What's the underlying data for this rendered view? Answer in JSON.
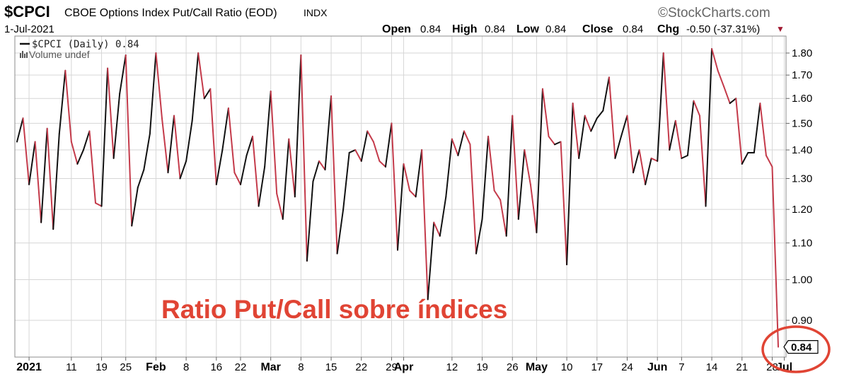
{
  "header": {
    "symbol": "$CPCI",
    "name": "CBOE Options Index Put/Call Ratio (EOD)",
    "exchange": "INDX",
    "date": "1-Jul-2021",
    "brand": "©StockCharts.com",
    "open_label": "Open",
    "open_value": "0.84",
    "high_label": "High",
    "high_value": "0.84",
    "low_label": "Low",
    "low_value": "0.84",
    "close_label": "Close",
    "close_value": "0.84",
    "chg_label": "Chg",
    "chg_value": "-0.50 (-37.31%)",
    "chg_arrow": "▼"
  },
  "legend": {
    "series_text": "$CPCI (Daily) 0.84",
    "volume_text": "Volume undef"
  },
  "annotation": "Ratio Put/Call sobre índices",
  "last_value_tag": "0.84",
  "colors": {
    "up_segment": "#111111",
    "down_segment": "#c43a4a",
    "grid": "#d6d6d6",
    "frame": "#888888",
    "annotation": "#e04434",
    "highlight_circle": "#e04434"
  },
  "chart_data": {
    "type": "line",
    "title": "CBOE Options Index Put/Call Ratio (EOD)",
    "xlabel": "",
    "ylabel": "",
    "ylim": [
      0.8,
      1.85
    ],
    "y_ticks": [
      "0.90",
      "1.00",
      "1.10",
      "1.20",
      "1.30",
      "1.40",
      "1.50",
      "1.60",
      "1.70",
      "1.80"
    ],
    "y_scale": "log",
    "grid": true,
    "legend_position": "top-left",
    "x_ticks": [
      "2021",
      "11",
      "19",
      "25",
      "Feb",
      "8",
      "16",
      "22",
      "Mar",
      "8",
      "15",
      "22",
      "29",
      "Apr",
      "12",
      "19",
      "26",
      "May",
      "10",
      "17",
      "24",
      "Jun",
      "7",
      "14",
      "21",
      "28",
      "Jul"
    ],
    "x_ticks_bold": [
      "2021",
      "Feb",
      "Mar",
      "Apr",
      "May",
      "Jun",
      "Jul"
    ],
    "x_tick_index": [
      2,
      9,
      14,
      18,
      23,
      28,
      33,
      37,
      42,
      47,
      52,
      57,
      62,
      64,
      72,
      77,
      82,
      86,
      91,
      96,
      101,
      106,
      110,
      115,
      120,
      125,
      127
    ],
    "series": [
      {
        "name": "$CPCI (Daily)",
        "values": [
          1.43,
          1.52,
          1.28,
          1.43,
          1.16,
          1.48,
          1.14,
          1.46,
          1.72,
          1.43,
          1.35,
          1.4,
          1.47,
          1.22,
          1.21,
          1.73,
          1.37,
          1.62,
          1.79,
          1.15,
          1.27,
          1.33,
          1.46,
          1.8,
          1.52,
          1.32,
          1.53,
          1.3,
          1.36,
          1.51,
          1.8,
          1.6,
          1.64,
          1.28,
          1.4,
          1.56,
          1.32,
          1.28,
          1.38,
          1.45,
          1.21,
          1.34,
          1.63,
          1.25,
          1.17,
          1.44,
          1.24,
          1.79,
          1.05,
          1.29,
          1.36,
          1.33,
          1.61,
          1.07,
          1.2,
          1.39,
          1.4,
          1.36,
          1.47,
          1.43,
          1.36,
          1.34,
          1.5,
          1.08,
          1.35,
          1.26,
          1.24,
          1.4,
          0.95,
          1.16,
          1.12,
          1.24,
          1.44,
          1.38,
          1.47,
          1.42,
          1.07,
          1.17,
          1.45,
          1.26,
          1.23,
          1.12,
          1.53,
          1.17,
          1.4,
          1.28,
          1.13,
          1.64,
          1.45,
          1.42,
          1.43,
          1.04,
          1.58,
          1.37,
          1.53,
          1.47,
          1.52,
          1.55,
          1.69,
          1.37,
          1.45,
          1.53,
          1.32,
          1.4,
          1.28,
          1.37,
          1.36,
          1.8,
          1.4,
          1.51,
          1.37,
          1.38,
          1.59,
          1.53,
          1.21,
          1.82,
          1.72,
          1.65,
          1.58,
          1.6,
          1.35,
          1.39,
          1.39,
          1.58,
          1.38,
          1.34,
          0.84
        ]
      }
    ]
  }
}
